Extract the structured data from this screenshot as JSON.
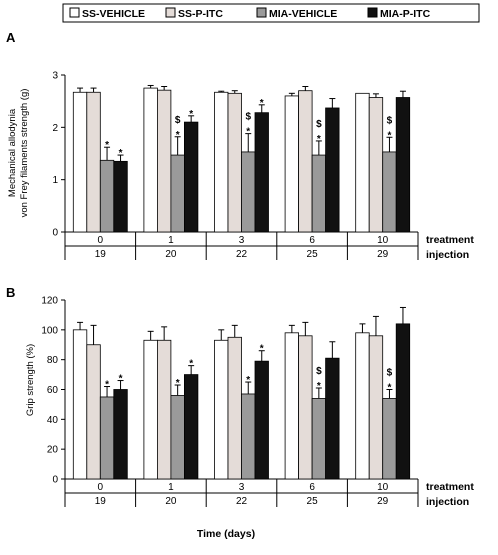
{
  "legend": [
    {
      "label": "SS-VEHICLE",
      "color": "#ffffff"
    },
    {
      "label": "SS-P-ITC",
      "color": "#e4dcd8"
    },
    {
      "label": "MIA-VEHICLE",
      "color": "#9a9a9a"
    },
    {
      "label": "MIA-P-ITC",
      "color": "#111111"
    }
  ],
  "x_title": "Time (days)",
  "chart_data": [
    {
      "type": "bar",
      "panel": "A",
      "ylabel_lines": [
        "Mechanical allodynia",
        "von Frey filaments strength (g)"
      ],
      "ylim": [
        0,
        3
      ],
      "yticks": [
        0,
        1,
        2,
        3
      ],
      "categories": [
        "0",
        "1",
        "3",
        "6",
        "10"
      ],
      "row_labels": [
        "treatment",
        "injection"
      ],
      "injection_days": [
        "19",
        "20",
        "22",
        "25",
        "29"
      ],
      "series": [
        {
          "name": "SS-VEHICLE",
          "values": [
            2.67,
            2.75,
            2.67,
            2.6,
            2.65
          ],
          "errors": [
            0.08,
            0.05,
            0.02,
            0.05,
            0.0
          ]
        },
        {
          "name": "SS-P-ITC",
          "values": [
            2.67,
            2.71,
            2.65,
            2.7,
            2.57
          ],
          "errors": [
            0.08,
            0.07,
            0.05,
            0.08,
            0.07
          ]
        },
        {
          "name": "MIA-VEHICLE",
          "values": [
            1.37,
            1.47,
            1.53,
            1.47,
            1.53
          ],
          "errors": [
            0.25,
            0.35,
            0.35,
            0.27,
            0.28
          ]
        },
        {
          "name": "MIA-P-ITC",
          "values": [
            1.35,
            2.1,
            2.28,
            2.37,
            2.57
          ],
          "errors": [
            0.12,
            0.12,
            0.15,
            0.18,
            0.12
          ]
        }
      ],
      "annotations": [
        {
          "category": 0,
          "series": 2,
          "marks": [
            "*"
          ]
        },
        {
          "category": 0,
          "series": 3,
          "marks": [
            "*"
          ]
        },
        {
          "category": 1,
          "series": 2,
          "marks": [
            "$",
            "*"
          ]
        },
        {
          "category": 1,
          "series": 3,
          "marks": [
            "*"
          ]
        },
        {
          "category": 2,
          "series": 2,
          "marks": [
            "$",
            "*"
          ]
        },
        {
          "category": 2,
          "series": 3,
          "marks": [
            "*"
          ]
        },
        {
          "category": 3,
          "series": 2,
          "marks": [
            "$",
            "*"
          ]
        },
        {
          "category": 4,
          "series": 2,
          "marks": [
            "$",
            "*"
          ]
        }
      ]
    },
    {
      "type": "bar",
      "panel": "B",
      "ylabel_lines": [
        "Grip strength (%)"
      ],
      "ylim": [
        0,
        120
      ],
      "yticks": [
        0,
        20,
        40,
        60,
        80,
        100,
        120
      ],
      "categories": [
        "0",
        "1",
        "3",
        "6",
        "10"
      ],
      "row_labels": [
        "treatment",
        "injection"
      ],
      "injection_days": [
        "19",
        "20",
        "22",
        "25",
        "29"
      ],
      "series": [
        {
          "name": "SS-VEHICLE",
          "values": [
            100,
            93,
            93,
            98,
            98
          ],
          "errors": [
            5,
            6,
            7,
            5,
            6
          ]
        },
        {
          "name": "SS-P-ITC",
          "values": [
            90,
            93,
            95,
            96,
            96
          ],
          "errors": [
            13,
            9,
            8,
            9,
            13
          ]
        },
        {
          "name": "MIA-VEHICLE",
          "values": [
            55,
            56,
            57,
            54,
            54
          ],
          "errors": [
            7,
            7,
            8,
            7,
            6
          ]
        },
        {
          "name": "MIA-P-ITC",
          "values": [
            60,
            70,
            79,
            81,
            104
          ],
          "errors": [
            6,
            6,
            7,
            11,
            11
          ]
        }
      ],
      "annotations": [
        {
          "category": 0,
          "series": 2,
          "marks": [
            "*"
          ]
        },
        {
          "category": 0,
          "series": 3,
          "marks": [
            "*"
          ]
        },
        {
          "category": 1,
          "series": 2,
          "marks": [
            "*"
          ]
        },
        {
          "category": 1,
          "series": 3,
          "marks": [
            "*"
          ]
        },
        {
          "category": 2,
          "series": 2,
          "marks": [
            "*"
          ]
        },
        {
          "category": 2,
          "series": 3,
          "marks": [
            "*"
          ]
        },
        {
          "category": 3,
          "series": 2,
          "marks": [
            "$",
            "*"
          ]
        },
        {
          "category": 4,
          "series": 2,
          "marks": [
            "$",
            "*"
          ]
        }
      ]
    }
  ]
}
